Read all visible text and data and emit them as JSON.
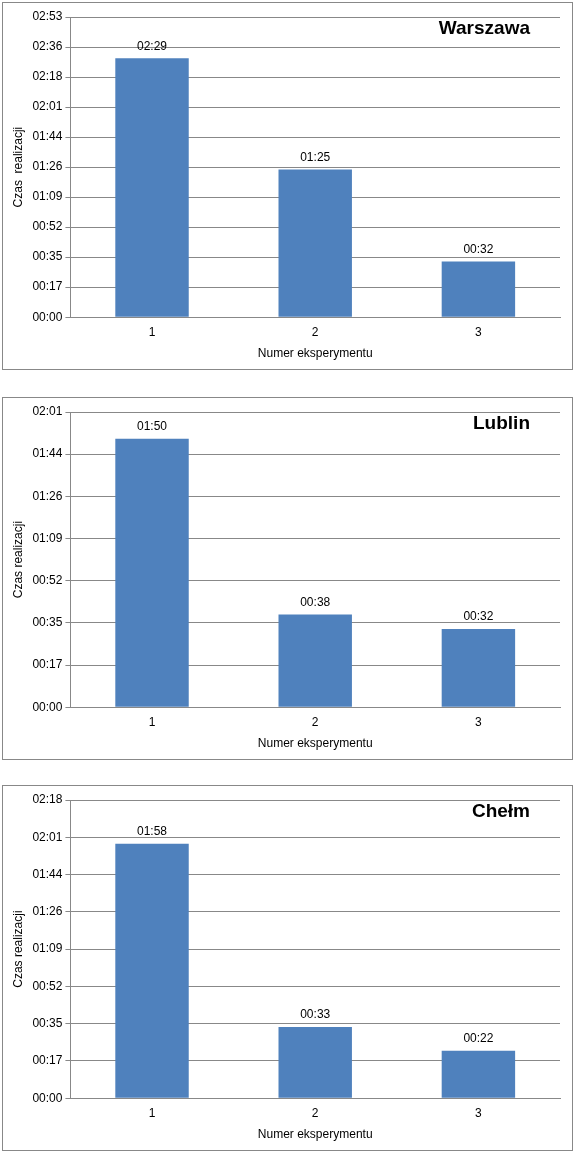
{
  "chart_data": [
    {
      "type": "bar",
      "title": "Warszawa",
      "xlabel": "Numer eksperymentu",
      "ylabel": "Czas  realizacji",
      "categories": [
        "1",
        "2",
        "3"
      ],
      "values": [
        149,
        85,
        32
      ],
      "color": "#4f81bd",
      "value_labels": [
        "02:29",
        "01:25",
        "00:32"
      ],
      "ylim": [
        0,
        172.8
      ],
      "yticks": [
        {
          "value": 0,
          "label": "00:00"
        },
        {
          "value": 17.28,
          "label": "00:17"
        },
        {
          "value": 34.56,
          "label": "00:35"
        },
        {
          "value": 51.84,
          "label": "00:52"
        },
        {
          "value": 69.12,
          "label": "01:09"
        },
        {
          "value": 86.4,
          "label": "01:26"
        },
        {
          "value": 103.68,
          "label": "01:44"
        },
        {
          "value": 120.96,
          "label": "02:01"
        },
        {
          "value": 138.24,
          "label": "02:18"
        },
        {
          "value": 155.52,
          "label": "02:36"
        },
        {
          "value": 172.8,
          "label": "02:53"
        }
      ],
      "grid": "y",
      "legend": false
    },
    {
      "type": "bar",
      "title": "Lublin",
      "xlabel": "Numer eksperymentu",
      "ylabel": "Czas realizacji",
      "categories": [
        "1",
        "2",
        "3"
      ],
      "values": [
        110,
        38,
        32
      ],
      "color": "#4f81bd",
      "value_labels": [
        "01:50",
        "00:38",
        "00:32"
      ],
      "ylim": [
        0,
        120.96
      ],
      "yticks": [
        {
          "value": 0,
          "label": "00:00"
        },
        {
          "value": 17.28,
          "label": "00:17"
        },
        {
          "value": 34.56,
          "label": "00:35"
        },
        {
          "value": 51.84,
          "label": "00:52"
        },
        {
          "value": 69.12,
          "label": "01:09"
        },
        {
          "value": 86.4,
          "label": "01:26"
        },
        {
          "value": 103.68,
          "label": "01:44"
        },
        {
          "value": 120.96,
          "label": "02:01"
        }
      ],
      "grid": "y",
      "legend": false
    },
    {
      "type": "bar",
      "title": "Chełm",
      "xlabel": "Numer eksperymentu",
      "ylabel": "Czas realizacji",
      "categories": [
        "1",
        "2",
        "3"
      ],
      "values": [
        118,
        33,
        22
      ],
      "color": "#4f81bd",
      "value_labels": [
        "01:58",
        "00:33",
        "00:22"
      ],
      "ylim": [
        0,
        138.24
      ],
      "yticks": [
        {
          "value": 0,
          "label": "00:00"
        },
        {
          "value": 17.28,
          "label": "00:17"
        },
        {
          "value": 34.56,
          "label": "00:35"
        },
        {
          "value": 51.84,
          "label": "00:52"
        },
        {
          "value": 69.12,
          "label": "01:09"
        },
        {
          "value": 86.4,
          "label": "01:26"
        },
        {
          "value": 103.68,
          "label": "01:44"
        },
        {
          "value": 120.96,
          "label": "02:01"
        },
        {
          "value": 138.24,
          "label": "02:18"
        }
      ],
      "grid": "y",
      "legend": false
    }
  ]
}
